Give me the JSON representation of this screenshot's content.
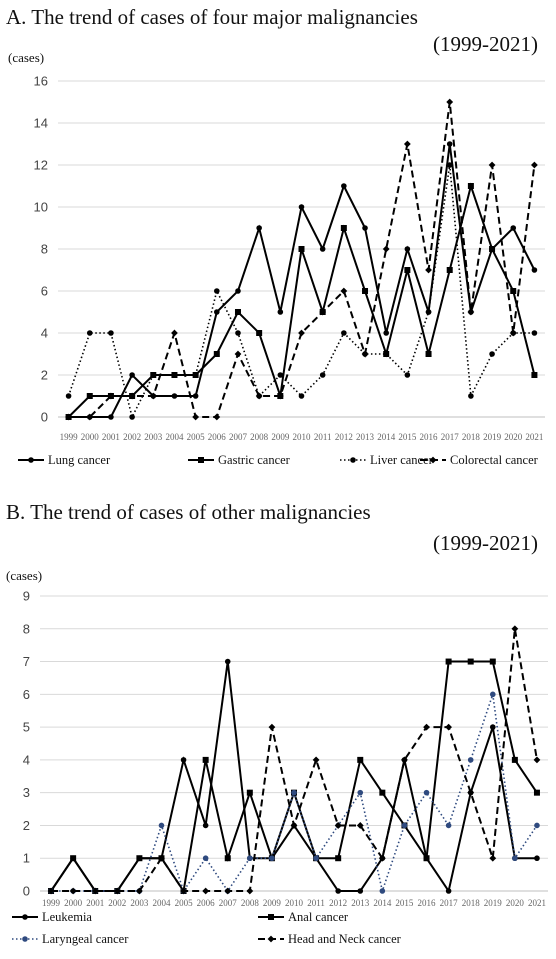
{
  "panels": [
    {
      "title_line1": "A.  The trend of cases of four major malignancies",
      "title_line2": "(1999-2021)",
      "unit": "(cases)"
    },
    {
      "title_line1": "B. The trend of cases of other malignancies",
      "title_line2": "(1999-2021)",
      "unit": "(cases)"
    }
  ],
  "chart_data": [
    {
      "type": "line",
      "title": "A.  The trend of cases of four major malignancies (1999-2021)",
      "ylabel": "(cases)",
      "ylim": [
        0,
        16
      ],
      "yticks": [
        0,
        2,
        4,
        6,
        8,
        10,
        12,
        14,
        16
      ],
      "grid": true,
      "legend": "bottom",
      "x": [
        "1999",
        "2000",
        "2001",
        "2002",
        "2003",
        "2004",
        "2005",
        "2006",
        "2007",
        "2008",
        "2009",
        "2010",
        "2011",
        "2012",
        "2013",
        "2014",
        "2015",
        "2016",
        "2017",
        "2018",
        "2019",
        "2020",
        "2021"
      ],
      "series": [
        {
          "name": "Lung cancer",
          "style": "solid",
          "marker": "circle",
          "color": "#000000",
          "values": [
            0,
            0,
            0,
            2,
            1,
            1,
            1,
            5,
            6,
            9,
            5,
            10,
            8,
            11,
            9,
            4,
            8,
            5,
            13,
            5,
            8,
            9,
            7
          ]
        },
        {
          "name": "Gastric cancer",
          "style": "solid",
          "marker": "square",
          "color": "#000000",
          "values": [
            0,
            1,
            1,
            1,
            2,
            2,
            2,
            3,
            5,
            4,
            1,
            8,
            5,
            9,
            6,
            3,
            7,
            3,
            7,
            11,
            8,
            6,
            2
          ]
        },
        {
          "name": "Liver cancer",
          "style": "dotted",
          "marker": "circle",
          "color": "#000000",
          "values": [
            1,
            4,
            4,
            0,
            2,
            2,
            2,
            6,
            4,
            1,
            2,
            1,
            2,
            4,
            3,
            3,
            2,
            5,
            12,
            1,
            3,
            4,
            4
          ]
        },
        {
          "name": "Colorectal cancer",
          "style": "dashed",
          "marker": "diamond",
          "color": "#000000",
          "values": [
            0,
            0,
            1,
            1,
            1,
            4,
            0,
            0,
            3,
            1,
            1,
            4,
            5,
            6,
            3,
            8,
            13,
            7,
            15,
            5,
            12,
            4,
            12
          ]
        }
      ]
    },
    {
      "type": "line",
      "title": "B. The trend of cases of other malignancies (1999-2021)",
      "ylabel": "(cases)",
      "ylim": [
        0,
        9
      ],
      "yticks": [
        0,
        1,
        2,
        3,
        4,
        5,
        6,
        7,
        8,
        9
      ],
      "grid": true,
      "legend": "bottom",
      "x": [
        "1999",
        "2000",
        "2001",
        "2002",
        "2003",
        "2004",
        "2005",
        "2006",
        "2007",
        "2008",
        "2009",
        "2010",
        "2011",
        "2012",
        "2013",
        "2014",
        "2015",
        "2016",
        "2017",
        "2018",
        "2019",
        "2020",
        "2021"
      ],
      "series": [
        {
          "name": "Leukemia",
          "style": "solid",
          "marker": "circle",
          "color": "#000000",
          "values": [
            0,
            1,
            0,
            0,
            1,
            1,
            4,
            2,
            7,
            1,
            1,
            2,
            1,
            0,
            0,
            1,
            4,
            1,
            0,
            3,
            5,
            1,
            1
          ]
        },
        {
          "name": "Anal cancer",
          "style": "solid",
          "marker": "square",
          "color": "#000000",
          "values": [
            0,
            1,
            0,
            0,
            1,
            1,
            0,
            4,
            1,
            3,
            1,
            3,
            1,
            1,
            4,
            3,
            2,
            1,
            7,
            7,
            7,
            4,
            3
          ]
        },
        {
          "name": "Laryngeal cancer",
          "style": "dotted",
          "marker": "circle",
          "color": "#2f4a7f",
          "values": [
            0,
            0,
            0,
            0,
            0,
            2,
            0,
            1,
            0,
            1,
            1,
            3,
            1,
            2,
            3,
            0,
            2,
            3,
            2,
            4,
            6,
            1,
            2
          ]
        },
        {
          "name": "Head and Neck cancer",
          "style": "dashed",
          "marker": "diamond",
          "color": "#000000",
          "values": [
            0,
            0,
            0,
            0,
            0,
            1,
            0,
            0,
            0,
            0,
            5,
            2,
            4,
            2,
            2,
            1,
            4,
            5,
            5,
            3,
            1,
            8,
            4
          ]
        }
      ]
    }
  ]
}
